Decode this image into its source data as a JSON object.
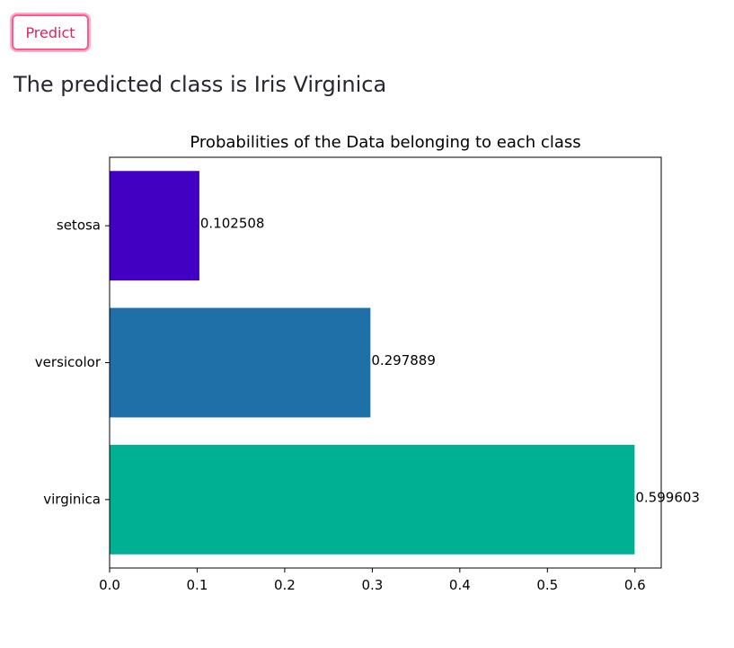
{
  "predict_button": {
    "label": "Predict"
  },
  "result": {
    "text": "The predicted class is Iris Virginica"
  },
  "colors": {
    "accent": "#ff4b4b",
    "button_text": "#e0245e"
  },
  "chart_data": {
    "type": "bar",
    "orientation": "horizontal",
    "title": "Probabilities of the Data belonging to each class",
    "xlabel": "",
    "ylabel": "",
    "categories": [
      "setosa",
      "versicolor",
      "virginica"
    ],
    "values": [
      0.102508,
      0.297889,
      0.599603
    ],
    "value_labels": [
      "0.102508",
      "0.297889",
      "0.599603"
    ],
    "bar_colors": [
      "#4200c3",
      "#1f6fa8",
      "#00b092"
    ],
    "xlim": [
      0,
      0.63
    ],
    "xticks": [
      0.0,
      0.1,
      0.2,
      0.3,
      0.4,
      0.5,
      0.6
    ],
    "xtick_labels": [
      "0.0",
      "0.1",
      "0.2",
      "0.3",
      "0.4",
      "0.5",
      "0.6"
    ],
    "grid": false,
    "legend": "none"
  }
}
